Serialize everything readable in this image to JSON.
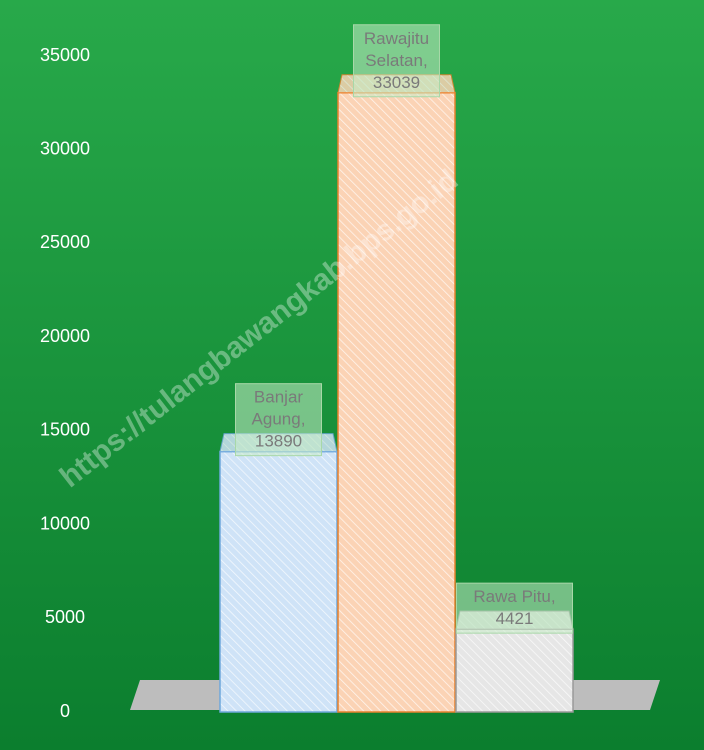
{
  "chart_data": {
    "type": "bar",
    "values": [
      13890,
      33039,
      4421
    ],
    "value_labels": [
      "Banjar Agung, 13890",
      "Rawajitu Selatan, 33039",
      "Rawa Pitu, 4421"
    ],
    "colors": [
      "#cfe3f7",
      "#fbd3b5",
      "#e6e6e6"
    ],
    "edge_colors": [
      "#6fa8dc",
      "#e8822e",
      "#9a9a9a"
    ],
    "ylim": [
      0,
      35000
    ],
    "yticks": [
      0,
      5000,
      10000,
      15000,
      20000,
      25000,
      30000,
      35000
    ],
    "grid": false,
    "watermark": "https://tulangbawangkab.bps.go.id"
  }
}
